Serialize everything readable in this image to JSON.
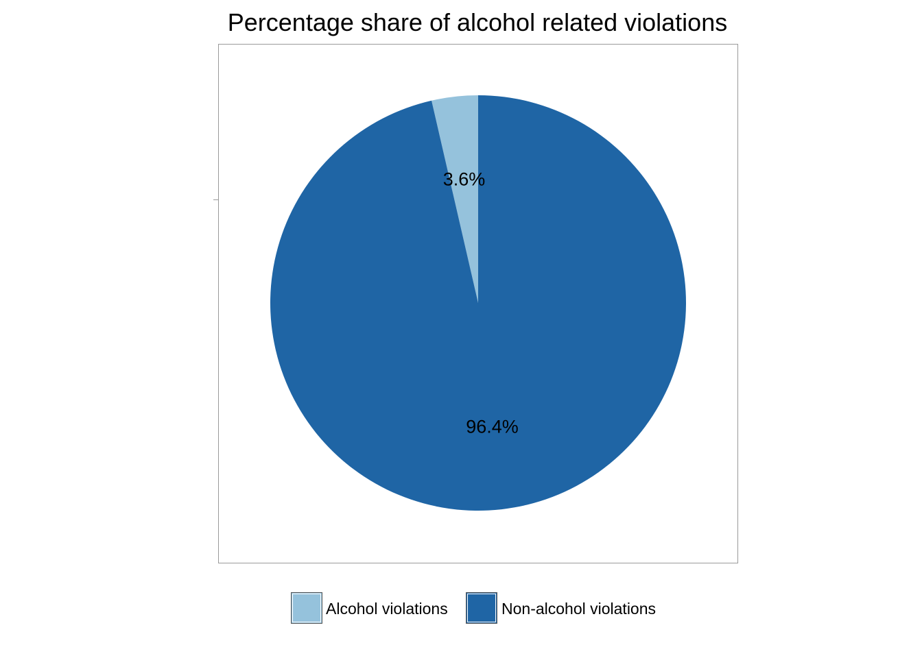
{
  "chart_data": {
    "type": "pie",
    "title": "Percentage share of alcohol related violations",
    "slices": [
      {
        "label": "Alcohol violations",
        "value": 3.6,
        "display": "3.6%",
        "color": "#95C2DC"
      },
      {
        "label": "Non-alcohol violations",
        "value": 96.4,
        "display": "96.4%",
        "color": "#1F65A5"
      }
    ],
    "start_angle": "top (12 o'clock)",
    "direction": "counterclockwise",
    "legend": {
      "position": "bottom",
      "entries": [
        "Alcohol violations",
        "Non-alcohol violations"
      ]
    },
    "frame_color": "#999999"
  }
}
